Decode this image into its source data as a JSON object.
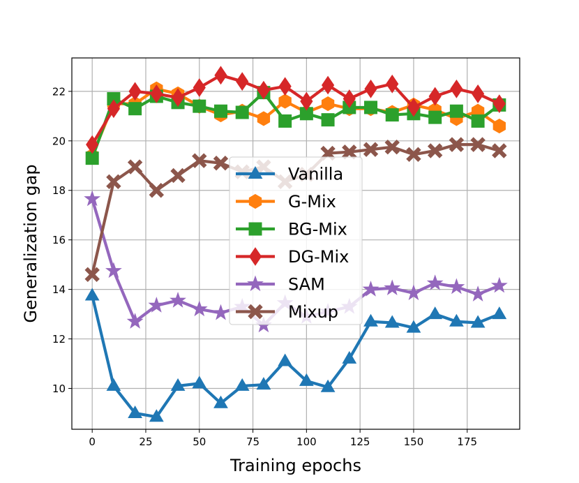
{
  "chart_data": {
    "type": "line",
    "title": "",
    "xlabel": "Training epochs",
    "ylabel": "Generalization gap",
    "xlim": [
      -9.5,
      199.5
    ],
    "ylim": [
      8.35,
      23.35
    ],
    "grid": true,
    "legend_position": "center",
    "x": [
      0,
      10,
      20,
      30,
      40,
      50,
      60,
      70,
      80,
      90,
      100,
      110,
      120,
      130,
      140,
      150,
      160,
      170,
      180,
      190
    ],
    "xticks": [
      0,
      25,
      50,
      75,
      100,
      125,
      150,
      175
    ],
    "yticks": [
      10,
      12,
      14,
      16,
      18,
      20,
      22
    ],
    "series": [
      {
        "name": "Vanilla",
        "color": "#1f77b4",
        "marker": "triangle",
        "values": [
          13.75,
          10.1,
          9.0,
          8.85,
          10.1,
          10.2,
          9.4,
          10.1,
          10.15,
          11.1,
          10.3,
          10.05,
          11.2,
          12.7,
          12.65,
          12.45,
          13.0,
          12.7,
          12.65,
          13.0
        ]
      },
      {
        "name": "G-Mix",
        "color": "#ff7f0e",
        "marker": "hexagon",
        "values": [
          19.4,
          21.5,
          21.5,
          22.1,
          21.9,
          21.4,
          21.05,
          21.2,
          20.9,
          21.6,
          21.15,
          21.5,
          21.3,
          21.3,
          21.15,
          21.45,
          21.25,
          20.9,
          21.2,
          20.6
        ]
      },
      {
        "name": "BG-Mix",
        "color": "#2ca02c",
        "marker": "square",
        "values": [
          19.3,
          21.7,
          21.3,
          21.8,
          21.55,
          21.4,
          21.2,
          21.15,
          21.95,
          20.8,
          21.1,
          20.85,
          21.35,
          21.35,
          21.05,
          21.1,
          20.95,
          21.2,
          20.8,
          21.45
        ]
      },
      {
        "name": "DG-Mix",
        "color": "#d62728",
        "marker": "diamond",
        "values": [
          19.85,
          21.3,
          22.0,
          21.9,
          21.75,
          22.15,
          22.65,
          22.4,
          22.05,
          22.2,
          21.6,
          22.25,
          21.7,
          22.1,
          22.3,
          21.35,
          21.8,
          22.1,
          21.9,
          21.5
        ]
      },
      {
        "name": "SAM",
        "color": "#9467bd",
        "marker": "star",
        "values": [
          17.65,
          14.75,
          12.7,
          13.35,
          13.55,
          13.2,
          13.05,
          13.3,
          12.55,
          13.45,
          12.9,
          13.1,
          13.3,
          14.0,
          14.05,
          13.85,
          14.25,
          14.1,
          13.8,
          14.15
        ]
      },
      {
        "name": "Mixup",
        "color": "#8c564b",
        "marker": "x",
        "values": [
          14.6,
          18.35,
          18.95,
          18.0,
          18.6,
          19.2,
          19.1,
          18.75,
          18.95,
          18.35,
          18.65,
          19.5,
          19.55,
          19.65,
          19.75,
          19.45,
          19.6,
          19.85,
          19.85,
          19.6
        ]
      }
    ]
  }
}
